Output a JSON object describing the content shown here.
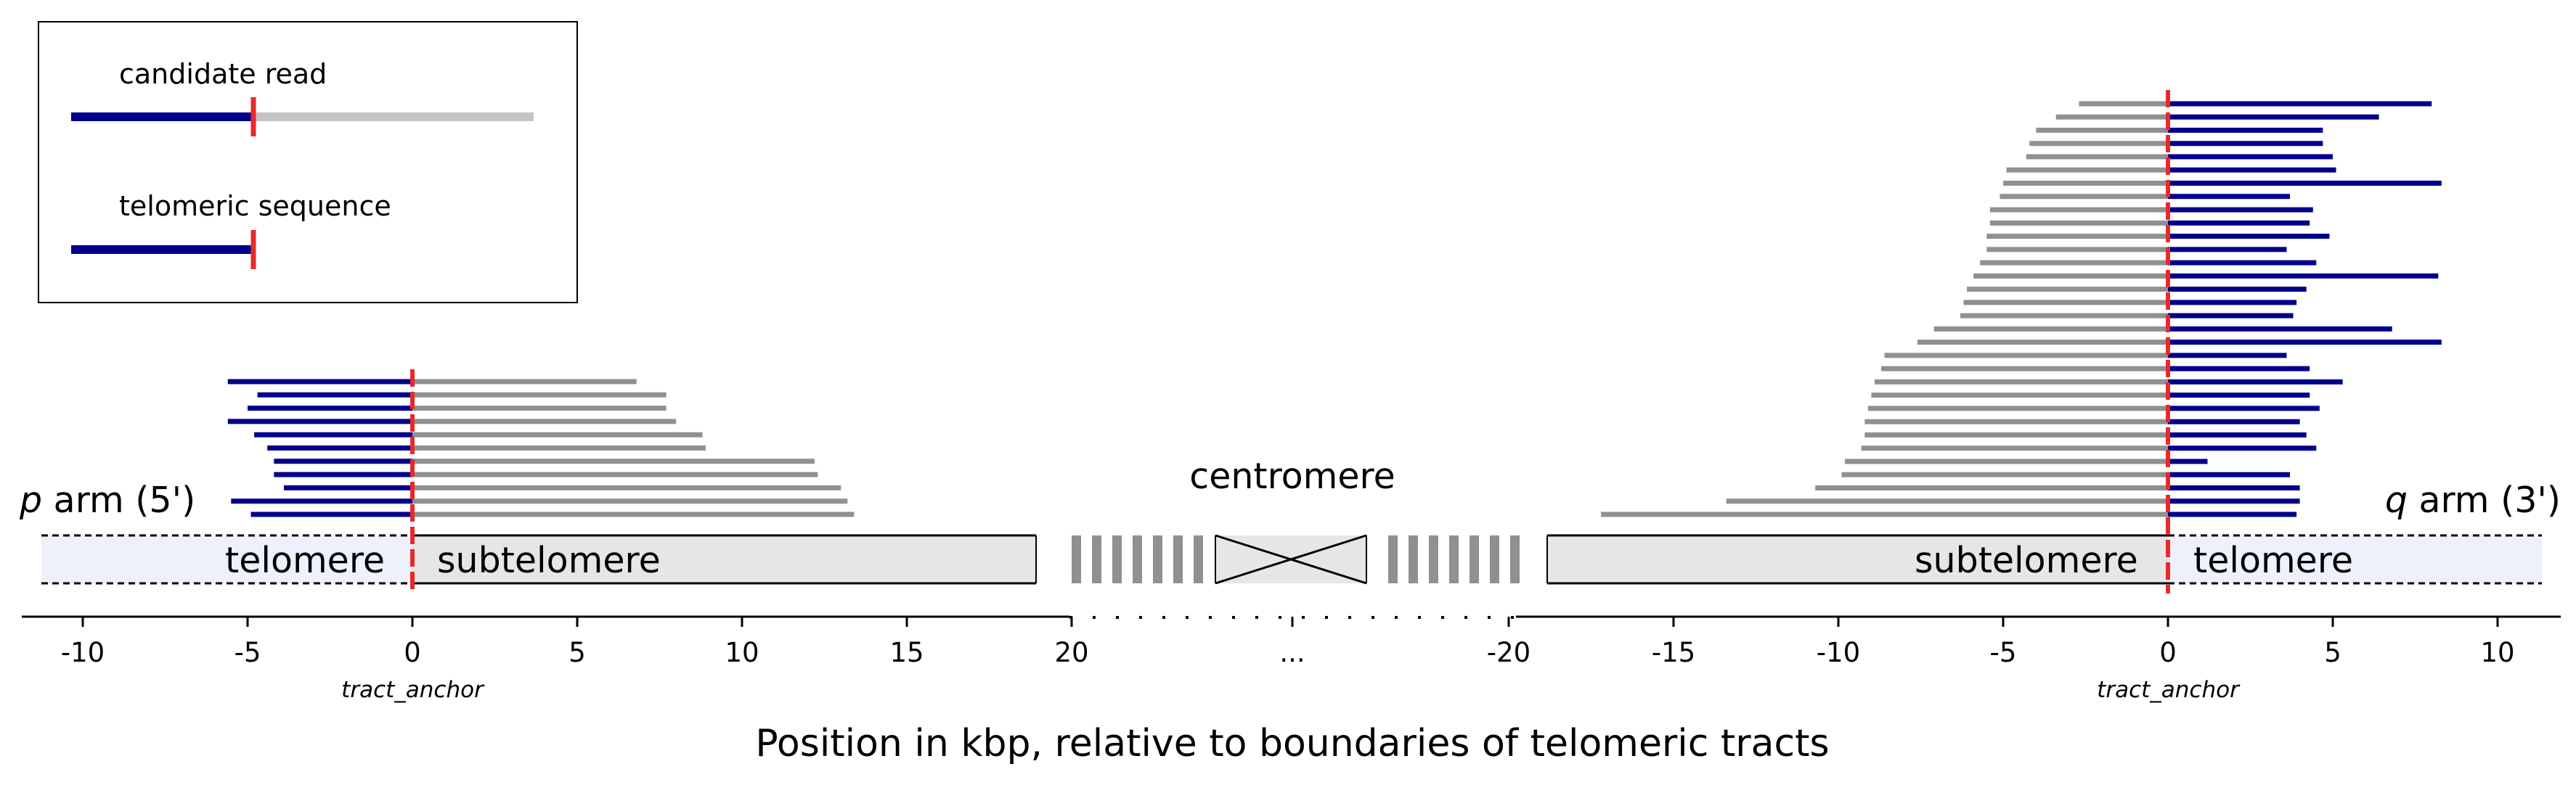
{
  "legend": {
    "candidate_read_label": "candidate read",
    "telomeric_sequence_label": "telomeric sequence"
  },
  "labels": {
    "p_arm_letter": "p",
    "p_arm_suffix": " arm (5')",
    "q_arm_letter": "q",
    "q_arm_suffix": " arm (3')",
    "centromere": "centromere",
    "telomere_left": "telomere",
    "subtelomere_left": "subtelomere",
    "subtelomere_right": "subtelomere",
    "telomere_right": "telomere",
    "tract_anchor_left": "tract_anchor",
    "tract_anchor_right": "tract_anchor",
    "ellipsis": "...",
    "xlabel": "Position in kbp, relative to boundaries of telomeric tracts"
  },
  "colors": {
    "telomeric": "#00008b",
    "subtelomeric_read": "#909090",
    "legend_read": "#c4c4c4",
    "anchor": "#e8292b",
    "telomere_band": "#eef0fb",
    "subtelomere_band": "#e6e6e6",
    "centromere_block": "#909090"
  },
  "chart_data": {
    "type": "bar",
    "units": "kbp",
    "p_arm": {
      "xlim": [
        -11.4,
        19.0
      ],
      "ticks": [
        -10,
        -5,
        0,
        5,
        10,
        15,
        20
      ],
      "reads": [
        {
          "telomeric_start": -5.6,
          "read_end": 6.8
        },
        {
          "telomeric_start": -4.7,
          "read_end": 7.7
        },
        {
          "telomeric_start": -5.0,
          "read_end": 7.7
        },
        {
          "telomeric_start": -5.6,
          "read_end": 8.0
        },
        {
          "telomeric_start": -4.8,
          "read_end": 8.8
        },
        {
          "telomeric_start": -4.4,
          "read_end": 8.9
        },
        {
          "telomeric_start": -4.2,
          "read_end": 12.2
        },
        {
          "telomeric_start": -4.2,
          "read_end": 12.3
        },
        {
          "telomeric_start": -3.9,
          "read_end": 13.0
        },
        {
          "telomeric_start": -5.5,
          "read_end": 13.2
        },
        {
          "telomeric_start": -4.9,
          "read_end": 13.4
        }
      ]
    },
    "q_arm": {
      "xlim": [
        -19.0,
        11.4
      ],
      "ticks": [
        -20,
        -15,
        -10,
        -5,
        0,
        5,
        10
      ],
      "reads": [
        {
          "read_start": -2.7,
          "telomeric_end": 8.0
        },
        {
          "read_start": -3.4,
          "telomeric_end": 6.4
        },
        {
          "read_start": -4.0,
          "telomeric_end": 4.7
        },
        {
          "read_start": -4.2,
          "telomeric_end": 4.7
        },
        {
          "read_start": -4.3,
          "telomeric_end": 5.0
        },
        {
          "read_start": -4.9,
          "telomeric_end": 5.1
        },
        {
          "read_start": -5.0,
          "telomeric_end": 8.3
        },
        {
          "read_start": -5.1,
          "telomeric_end": 3.7
        },
        {
          "read_start": -5.4,
          "telomeric_end": 4.4
        },
        {
          "read_start": -5.4,
          "telomeric_end": 4.3
        },
        {
          "read_start": -5.5,
          "telomeric_end": 4.9
        },
        {
          "read_start": -5.5,
          "telomeric_end": 3.6
        },
        {
          "read_start": -5.7,
          "telomeric_end": 4.5
        },
        {
          "read_start": -5.9,
          "telomeric_end": 8.2
        },
        {
          "read_start": -6.1,
          "telomeric_end": 4.2
        },
        {
          "read_start": -6.2,
          "telomeric_end": 3.9
        },
        {
          "read_start": -6.3,
          "telomeric_end": 3.8
        },
        {
          "read_start": -7.1,
          "telomeric_end": 6.8
        },
        {
          "read_start": -7.6,
          "telomeric_end": 8.3
        },
        {
          "read_start": -8.6,
          "telomeric_end": 3.6
        },
        {
          "read_start": -8.7,
          "telomeric_end": 4.3
        },
        {
          "read_start": -8.9,
          "telomeric_end": 5.3
        },
        {
          "read_start": -9.0,
          "telomeric_end": 4.3
        },
        {
          "read_start": -9.1,
          "telomeric_end": 4.6
        },
        {
          "read_start": -9.2,
          "telomeric_end": 4.0
        },
        {
          "read_start": -9.2,
          "telomeric_end": 4.2
        },
        {
          "read_start": -9.3,
          "telomeric_end": 4.5
        },
        {
          "read_start": -9.8,
          "telomeric_end": 1.2
        },
        {
          "read_start": -9.9,
          "telomeric_end": 3.7
        },
        {
          "read_start": -10.7,
          "telomeric_end": 4.0
        },
        {
          "read_start": -13.4,
          "telomeric_end": 4.0
        },
        {
          "read_start": -17.2,
          "telomeric_end": 3.9
        }
      ]
    }
  }
}
